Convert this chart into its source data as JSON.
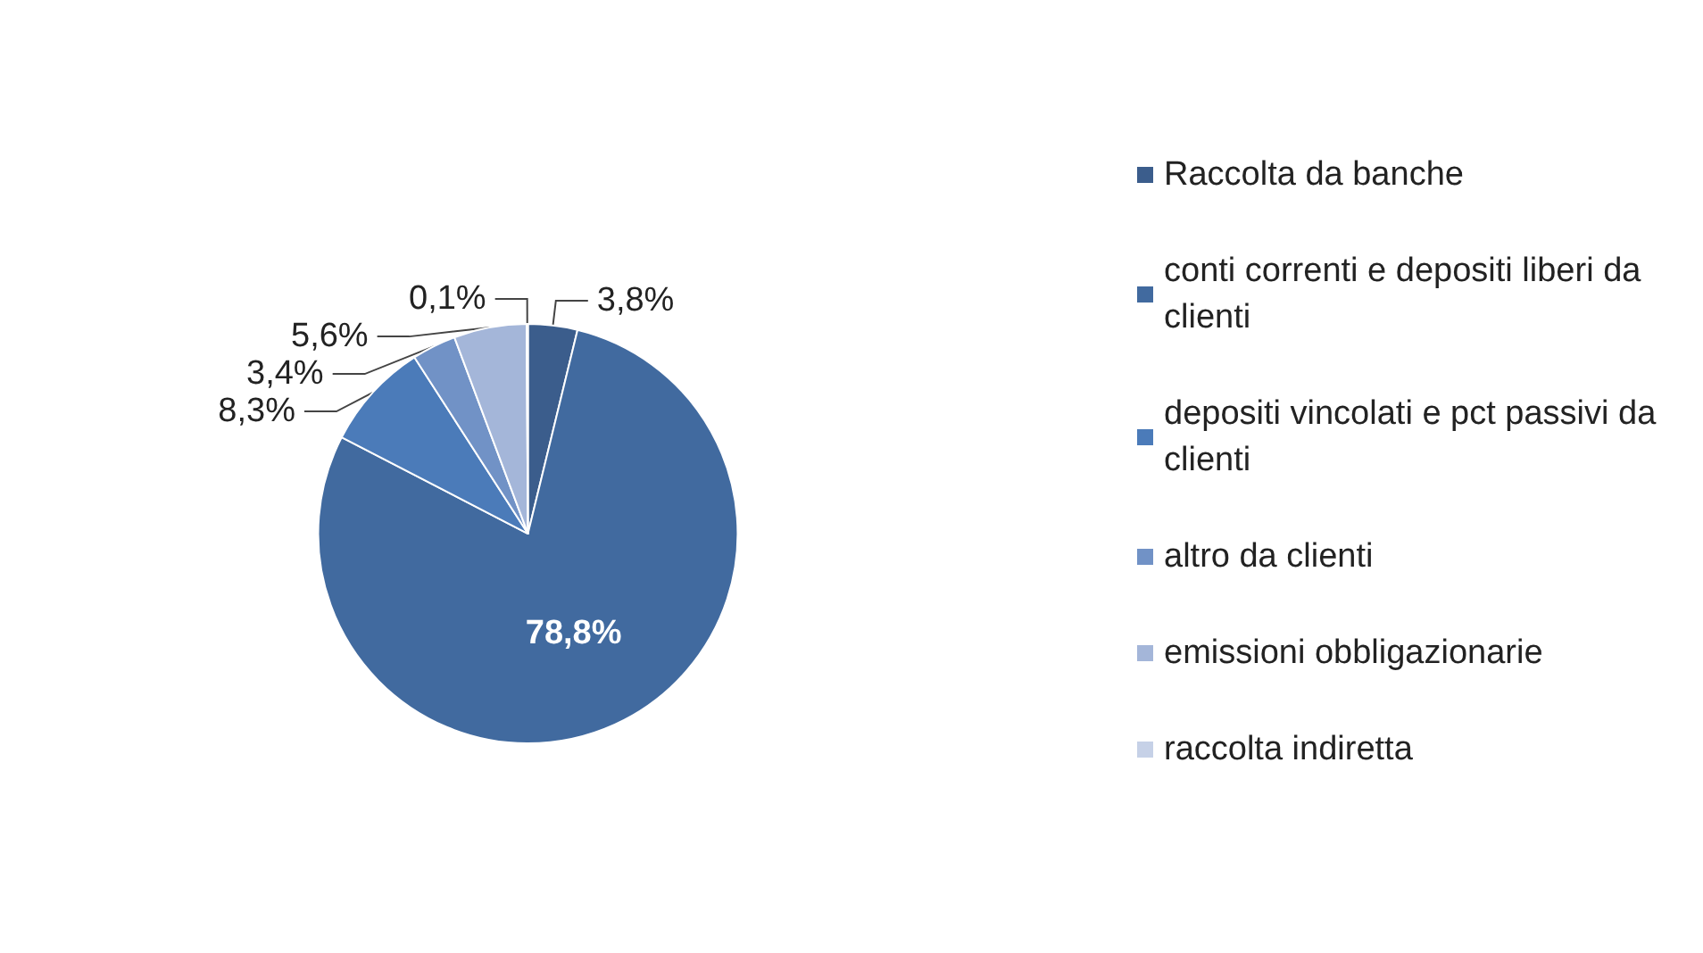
{
  "chart_data": {
    "type": "pie",
    "categories": [
      "Raccolta da banche",
      "conti correnti e depositi liberi da clienti",
      "depositi vincolati e pct passivi da clienti",
      "altro da clienti",
      "emissioni obbligazionarie",
      "raccolta indiretta"
    ],
    "values": [
      3.8,
      78.8,
      8.3,
      3.4,
      5.6,
      0.1
    ],
    "value_labels": [
      "3,8%",
      "78,8%",
      "8,3%",
      "3,4%",
      "5,6%",
      "0,1%"
    ],
    "colors": [
      "#3b5d8c",
      "#416a9f",
      "#4b7bb9",
      "#7192c6",
      "#a4b6d9",
      "#c6d1e7"
    ],
    "legend": "right"
  }
}
